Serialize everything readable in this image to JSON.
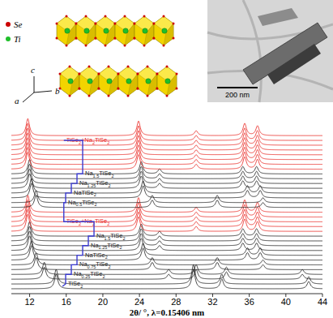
{
  "chart_data": {
    "type": "line",
    "xlabel": "2θ/ °, λ=0.15406 nm",
    "xlim": [
      10,
      44
    ],
    "xticks": [
      12,
      16,
      20,
      24,
      28,
      32,
      36,
      40,
      44
    ],
    "tick_labels": "x",
    "grid": false,
    "series": [
      {
        "name": "TiSe2",
        "color": "#1a1a1a",
        "x": [
          14.9,
          29.9,
          33.0,
          42.5
        ],
        "y": [
          6,
          8,
          4,
          3
        ]
      },
      {
        "color": "#1a1a1a",
        "x": [
          14.9,
          29.9,
          33.0,
          42.5
        ],
        "y": [
          6,
          8,
          4,
          3
        ]
      },
      {
        "name": "Na0.25TiSe2",
        "color": "#1a1a1a",
        "x": [
          13.6,
          27.2,
          30.2,
          33.5,
          41.8
        ],
        "y": [
          5,
          2,
          4,
          3,
          2
        ]
      },
      {
        "color": "#1a1a1a",
        "x": [
          13.6,
          27.2,
          30.2,
          33.5,
          41.8
        ],
        "y": [
          5,
          2,
          4,
          3,
          2
        ]
      },
      {
        "name": "Na0.75TiSe2",
        "color": "#1a1a1a",
        "x": [
          12.7,
          25.4,
          32.5,
          37.5
        ],
        "y": [
          5,
          3,
          3,
          2
        ]
      },
      {
        "color": "#1a1a1a",
        "x": [
          12.7,
          25.4,
          32.5,
          37.5
        ],
        "y": [
          5,
          3,
          3,
          2
        ]
      },
      {
        "name": "NaTiSe2",
        "color": "#1a1a1a",
        "x": [
          12.2,
          24.4,
          35.8,
          37.2
        ],
        "y": [
          6,
          5,
          3,
          3
        ]
      },
      {
        "color": "#1a1a1a",
        "x": [
          12.2,
          24.4,
          35.8,
          37.2
        ],
        "y": [
          6,
          5,
          3,
          3
        ]
      },
      {
        "name": "Na1.25TiSe2",
        "color": "#1a1a1a",
        "x": [
          12.0,
          24.2,
          26.2,
          35.3,
          36.8
        ],
        "y": [
          6,
          5,
          2,
          3,
          3
        ]
      },
      {
        "color": "#1a1a1a",
        "x": [
          12.0,
          24.2,
          26.2,
          35.3,
          36.8
        ],
        "y": [
          6,
          5,
          2,
          3,
          3
        ]
      },
      {
        "name": "Na1.5TiSe2",
        "color": "#1a1a1a",
        "x": [
          12.0,
          24.2,
          26.2,
          35.3,
          36.8
        ],
        "y": [
          6,
          5,
          2,
          3,
          3
        ]
      },
      {
        "color": "#1a1a1a",
        "x": [
          12.0,
          24.2,
          26.2,
          35.3,
          36.8
        ],
        "y": [
          6,
          5,
          2,
          3,
          3
        ]
      },
      {
        "color": "#e8251f",
        "x": [
          11.8,
          23.9,
          30.2,
          35.5,
          36.9
        ],
        "y": [
          7,
          6,
          2,
          5,
          4
        ]
      },
      {
        "name": "TiSe2+Na2TiSe2",
        "color": "#e8251f",
        "x": [
          11.8,
          23.9,
          30.2,
          35.5,
          36.9
        ],
        "y": [
          7,
          6,
          2,
          5,
          4
        ]
      },
      {
        "color": "#e8251f",
        "x": [
          11.8,
          23.9,
          30.2,
          35.5,
          36.9
        ],
        "y": [
          7,
          6,
          2,
          5,
          4
        ]
      },
      {
        "color": "#e8251f",
        "x": [
          11.8,
          23.9,
          30.2,
          35.5,
          36.9
        ],
        "y": [
          7,
          6,
          2,
          5,
          4
        ]
      },
      {
        "color": "#e8251f",
        "x": [
          11.8,
          23.9,
          30.2,
          35.5,
          36.9
        ],
        "y": [
          7,
          6,
          2,
          5,
          4
        ]
      },
      {
        "name": "Na0.5TiSe2",
        "color": "#1a1a1a",
        "x": [
          12.7,
          25.4,
          32.5,
          37.5
        ],
        "y": [
          5,
          3,
          3,
          2
        ]
      },
      {
        "color": "#1a1a1a",
        "x": [
          12.7,
          25.4,
          32.5,
          37.5
        ],
        "y": [
          5,
          3,
          3,
          2
        ]
      },
      {
        "name": "NaTiSe2",
        "color": "#1a1a1a",
        "x": [
          12.2,
          24.4,
          35.8,
          37.2
        ],
        "y": [
          6,
          5,
          3,
          3
        ]
      },
      {
        "color": "#1a1a1a",
        "x": [
          12.2,
          24.4,
          35.8,
          37.2
        ],
        "y": [
          6,
          5,
          3,
          3
        ]
      },
      {
        "name": "Na1.25TiSe2",
        "color": "#1a1a1a",
        "x": [
          12.0,
          24.2,
          26.2,
          35.3,
          36.8
        ],
        "y": [
          6,
          5,
          2,
          3,
          3
        ]
      },
      {
        "color": "#1a1a1a",
        "x": [
          12.0,
          24.2,
          26.2,
          35.3,
          36.8
        ],
        "y": [
          6,
          5,
          2,
          3,
          3
        ]
      },
      {
        "name": "Na1.5TiSe2",
        "color": "#1a1a1a",
        "x": [
          12.0,
          24.2,
          26.2,
          35.3,
          36.8
        ],
        "y": [
          6,
          5,
          2,
          3,
          3
        ]
      },
      {
        "color": "#1a1a1a",
        "x": [
          12.0,
          24.2,
          26.2,
          35.3,
          36.8
        ],
        "y": [
          6,
          5,
          2,
          3,
          3
        ]
      },
      {
        "color": "#e8251f",
        "x": [
          11.8,
          23.9,
          30.2,
          35.5,
          36.9
        ],
        "y": [
          7,
          6,
          2,
          5,
          4
        ]
      },
      {
        "color": "#e8251f",
        "x": [
          11.8,
          23.9,
          30.2,
          35.5,
          36.9
        ],
        "y": [
          7,
          6,
          2,
          5,
          4
        ]
      },
      {
        "color": "#e8251f",
        "x": [
          11.8,
          23.9,
          30.2,
          35.5,
          36.9
        ],
        "y": [
          7,
          6,
          2,
          5,
          4
        ]
      },
      {
        "color": "#e8251f",
        "x": [
          11.8,
          23.9,
          30.2,
          35.5,
          36.9
        ],
        "y": [
          7,
          6,
          2,
          5,
          4
        ]
      },
      {
        "color": "#e8251f",
        "x": [
          11.8,
          23.9,
          30.2,
          35.5,
          36.9
        ],
        "y": [
          7,
          6,
          2,
          5,
          4
        ]
      },
      {
        "name": "TiSe2+Na2TiSe2",
        "color": "#e8251f",
        "x": [
          11.8,
          23.9,
          30.2,
          35.5,
          36.9
        ],
        "y": [
          7,
          6,
          2,
          5,
          4
        ]
      },
      {
        "color": "#e8251f",
        "x": [
          11.8,
          23.9,
          30.2,
          35.5,
          36.9
        ],
        "y": [
          7,
          6,
          2,
          5,
          4
        ]
      },
      {
        "color": "#e8251f",
        "x": [
          11.8,
          23.9,
          30.2,
          35.5,
          36.9
        ],
        "y": [
          7,
          6,
          2,
          5,
          4
        ]
      }
    ]
  },
  "structure": {
    "legend": [
      {
        "label": "Se",
        "color": "#cc0000"
      },
      {
        "label": "Ti",
        "color": "#1fbf2a"
      }
    ],
    "axes": [
      "a",
      "b",
      "c"
    ]
  },
  "micrograph": {
    "scale_bar": "200 nm"
  }
}
